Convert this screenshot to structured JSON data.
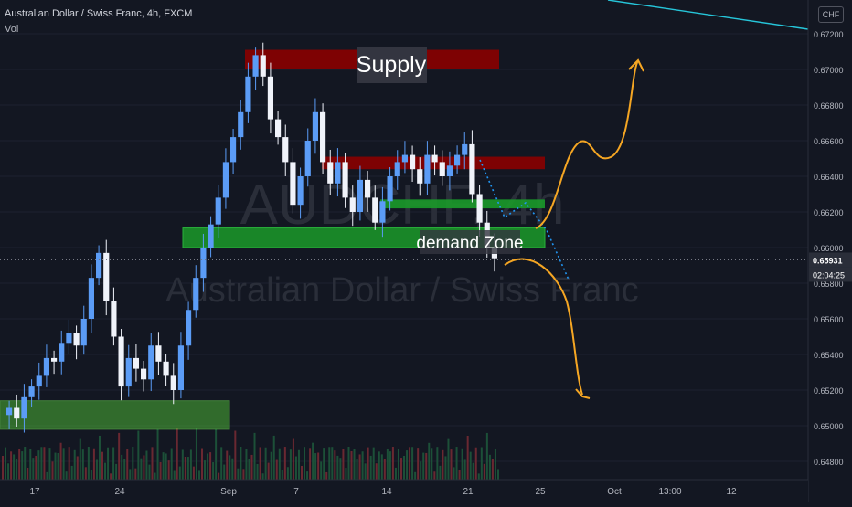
{
  "header": {
    "title": "Australian Dollar / Swiss Franc, 4h, FXCM",
    "volume_label": "Vol",
    "currency_button": "CHF"
  },
  "watermark": {
    "ticker": "AUDCHF, 4h",
    "name": "Australian Dollar / Swiss Franc"
  },
  "price_tag": {
    "last": "0.65931",
    "countdown": "02:04:25"
  },
  "annotations": {
    "supply": "Supply",
    "demand": "demand Zone"
  },
  "colors": {
    "background": "#131722",
    "up_candle": "#5b9cf6",
    "down_candle": "#f0f3fa",
    "supply_zone": "#8b0000",
    "demand_zone": "#1b9a2a",
    "light_demand_zone": "#56d13a",
    "forecast_arrow": "#f5a623",
    "path_dotted": "#2196f3",
    "trend_line": "#26c6da"
  },
  "chart_data": {
    "type": "candlestick",
    "title": "Australian Dollar / Swiss Franc, 4h, FXCM",
    "y_axis": {
      "ticks": [
        "0.67200",
        "0.67000",
        "0.66800",
        "0.66600",
        "0.66400",
        "0.66200",
        "0.66000",
        "0.65800",
        "0.65600",
        "0.65400",
        "0.65200",
        "0.65000",
        "0.64800"
      ],
      "ylim": [
        0.6474,
        0.6727
      ]
    },
    "x_axis": {
      "ticks": [
        "17",
        "24",
        "Sep",
        "7",
        "14",
        "21",
        "25",
        "Oct",
        "13:00",
        "12"
      ]
    },
    "last_price": 0.65931,
    "zones": [
      {
        "label": "Supply",
        "type": "supply",
        "price_low": 0.67,
        "price_high": 0.6711
      },
      {
        "label": "",
        "type": "supply",
        "price_low": 0.6644,
        "price_high": 0.6651
      },
      {
        "label": "",
        "type": "demand",
        "price_low": 0.6622,
        "price_high": 0.6627
      },
      {
        "label": "demand Zone",
        "type": "demand",
        "price_low": 0.66,
        "price_high": 0.6611
      },
      {
        "label": "",
        "type": "demand",
        "price_low": 0.6498,
        "price_high": 0.6514
      }
    ],
    "candles_approx_close": [
      0.651,
      0.6504,
      0.6516,
      0.6522,
      0.6528,
      0.6538,
      0.6536,
      0.6546,
      0.6552,
      0.6545,
      0.656,
      0.6583,
      0.6597,
      0.657,
      0.655,
      0.6522,
      0.6538,
      0.6532,
      0.6526,
      0.6545,
      0.6536,
      0.6528,
      0.652,
      0.6545,
      0.6565,
      0.6583,
      0.66,
      0.6613,
      0.6628,
      0.6648,
      0.6662,
      0.6676,
      0.6696,
      0.6708,
      0.6696,
      0.6672,
      0.6662,
      0.6648,
      0.6624,
      0.664,
      0.666,
      0.6676,
      0.6648,
      0.6636,
      0.6648,
      0.6628,
      0.662,
      0.6638,
      0.6628,
      0.6614,
      0.6626,
      0.664,
      0.6648,
      0.6652,
      0.6644,
      0.6636,
      0.6652,
      0.6648,
      0.664,
      0.6646,
      0.6652,
      0.6658,
      0.663,
      0.6614,
      0.66,
      0.6594
    ]
  }
}
